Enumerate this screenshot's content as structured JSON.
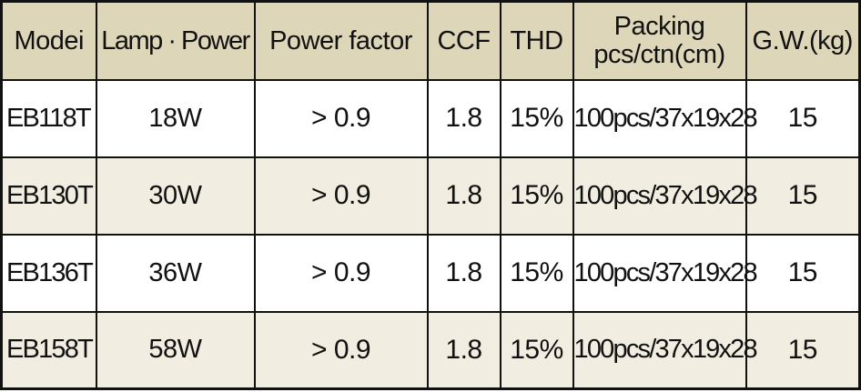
{
  "table": {
    "headers": {
      "model": "Modei",
      "lamp_power": "Lamp · Power",
      "power_factor": "Power factor",
      "ccf": "CCF",
      "thd": "THD",
      "packing_line1": "Packing",
      "packing_line2": "pcs/ctn(cm)",
      "gw": "G.W.(kg)"
    },
    "rows": [
      {
        "model": "EB118T",
        "lamp_power": "18W",
        "power_factor": "> 0.9",
        "ccf": "1.8",
        "thd": "15%",
        "packing": "100pcs/37x19x28",
        "gw": "15"
      },
      {
        "model": "EB130T",
        "lamp_power": "30W",
        "power_factor": "> 0.9",
        "ccf": "1.8",
        "thd": "15%",
        "packing": "100pcs/37x19x28",
        "gw": "15"
      },
      {
        "model": "EB136T",
        "lamp_power": "36W",
        "power_factor": "> 0.9",
        "ccf": "1.8",
        "thd": "15%",
        "packing": "100pcs/37x19x28",
        "gw": "15"
      },
      {
        "model": "EB158T",
        "lamp_power": "58W",
        "power_factor": "> 0.9",
        "ccf": "1.8",
        "thd": "15%",
        "packing": "100pcs/37x19x28",
        "gw": "15"
      }
    ]
  },
  "colors": {
    "header_background": "#ddd6b8",
    "alternate_row_background": "#f1eee1",
    "border": "#111111"
  }
}
